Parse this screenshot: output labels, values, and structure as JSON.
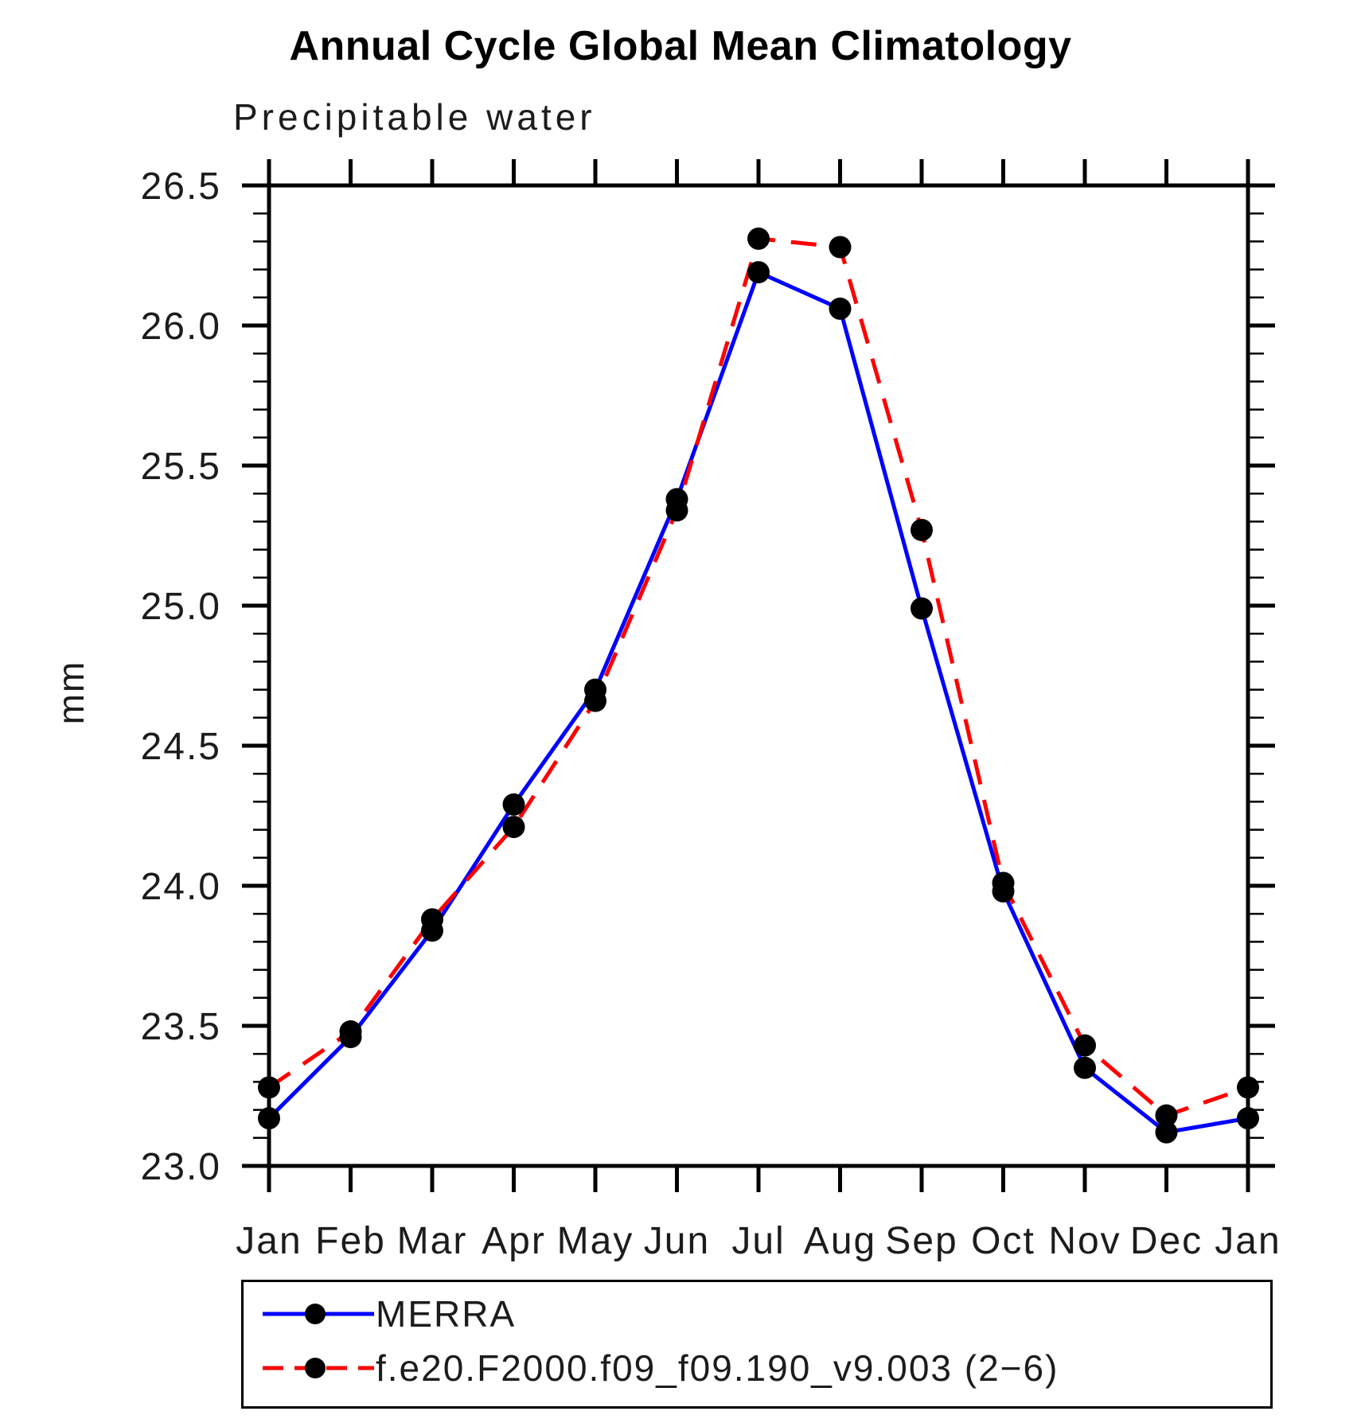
{
  "title": "Annual Cycle Global Mean Climatology",
  "subtitle": "Precipitable water",
  "chart_data": {
    "type": "line",
    "title": "Annual Cycle Global Mean Climatology",
    "subtitle": "Precipitable water",
    "ylabel": "mm",
    "xlabel": "",
    "categories": [
      "Jan",
      "Feb",
      "Mar",
      "Apr",
      "May",
      "Jun",
      "Jul",
      "Aug",
      "Sep",
      "Oct",
      "Nov",
      "Dec",
      "Jan"
    ],
    "ylim": [
      23.0,
      26.5
    ],
    "ytick_labels": [
      "23.0",
      "23.5",
      "24.0",
      "24.5",
      "25.0",
      "25.5",
      "26.0",
      "26.5"
    ],
    "yminor_step": 0.1,
    "grid": false,
    "legend_position": "bottom-box",
    "marker": "black-circle",
    "series": [
      {
        "name": "MERRA",
        "color": "#0000ff",
        "line_style": "solid",
        "values": [
          23.17,
          23.46,
          23.84,
          24.29,
          24.7,
          25.38,
          26.19,
          26.06,
          24.99,
          23.98,
          23.35,
          23.12,
          23.17
        ]
      },
      {
        "name": "f.e20.F2000.f09_f09.190_v9.003 (2−6)",
        "color": "#ff0000",
        "line_style": "dashed",
        "values": [
          23.28,
          23.48,
          23.88,
          24.21,
          24.66,
          25.34,
          26.31,
          26.28,
          25.27,
          24.01,
          23.43,
          23.18,
          23.28
        ]
      }
    ]
  }
}
